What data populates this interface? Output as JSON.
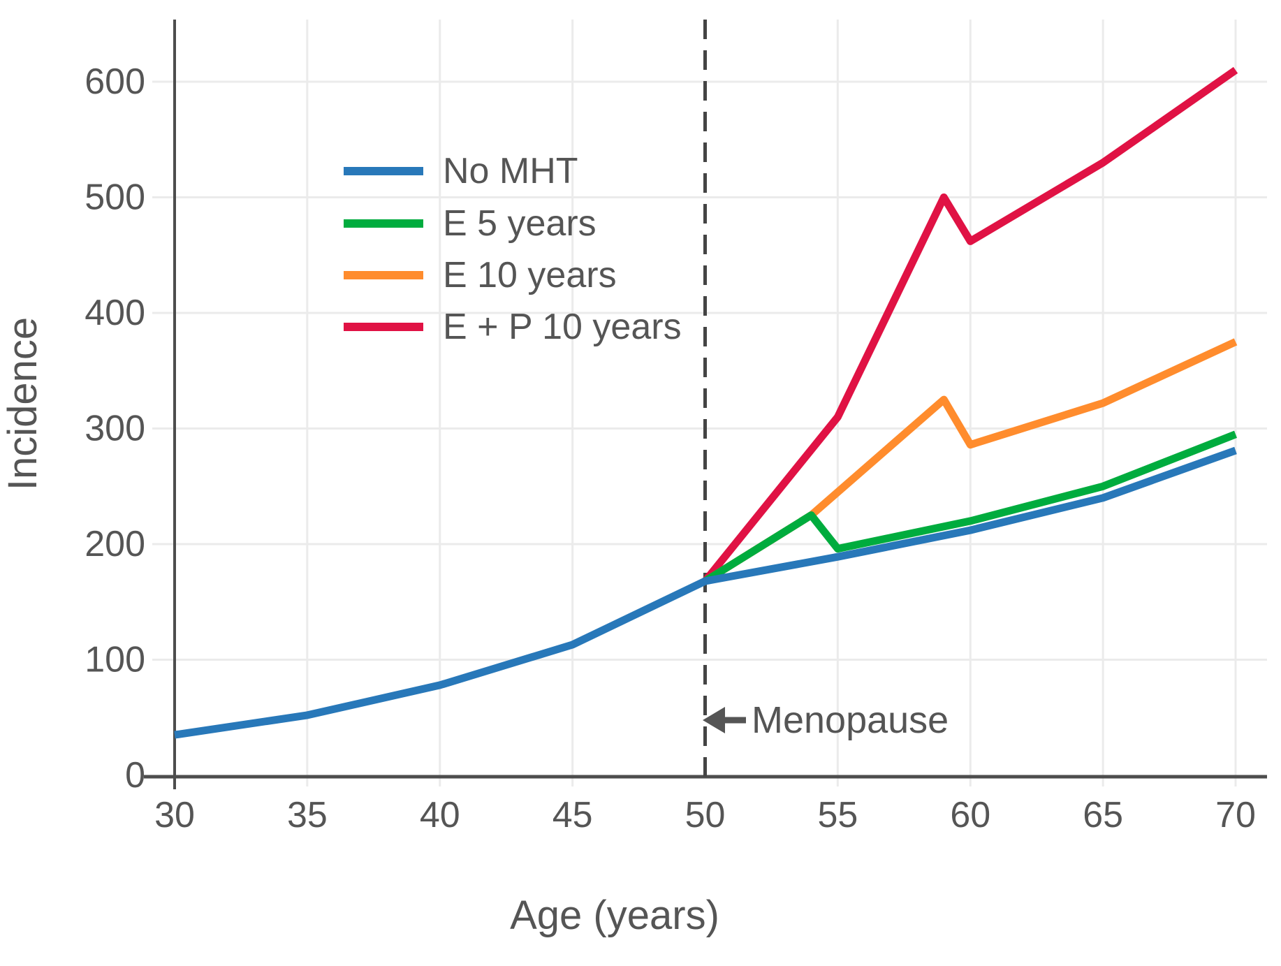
{
  "figure": {
    "background": "#ffffff",
    "text_color": "#555555",
    "spine_color": "#4d4d4d",
    "grid_color": "#ebebeb",
    "dash_line_color": "#444444"
  },
  "chart_data": {
    "type": "line",
    "title": "",
    "xlabel": "Age (years)",
    "ylabel": "Incidence",
    "xlim": [
      30,
      71.2
    ],
    "ylim": [
      0,
      650
    ],
    "xticks": [
      30,
      35,
      40,
      45,
      50,
      55,
      60,
      65,
      70
    ],
    "yticks": [
      0,
      100,
      200,
      300,
      400,
      500,
      600
    ],
    "grid": true,
    "legend": {
      "position": "upper-left-inside",
      "entries": [
        "No MHT",
        "E 5 years",
        "E 10 years",
        "E + P 10 years"
      ]
    },
    "series": [
      {
        "name": "No MHT",
        "color": "#2878b9",
        "points": [
          [
            30,
            35
          ],
          [
            35,
            52
          ],
          [
            40,
            78
          ],
          [
            45,
            113
          ],
          [
            50,
            168
          ],
          [
            55,
            189
          ],
          [
            60,
            212
          ],
          [
            65,
            240
          ],
          [
            70,
            281
          ]
        ]
      },
      {
        "name": "E 5 years",
        "color": "#00ac3e",
        "points": [
          [
            50,
            168
          ],
          [
            54,
            225
          ],
          [
            55,
            196
          ],
          [
            60,
            220
          ],
          [
            65,
            250
          ],
          [
            70,
            295
          ]
        ]
      },
      {
        "name": "E 10 years",
        "color": "#ff8c2d",
        "points": [
          [
            50,
            168
          ],
          [
            54,
            225
          ],
          [
            59,
            325
          ],
          [
            60,
            286
          ],
          [
            65,
            322
          ],
          [
            70,
            375
          ]
        ]
      },
      {
        "name": "E + P 10 years",
        "color": "#e01244",
        "points": [
          [
            50,
            168
          ],
          [
            55,
            310
          ],
          [
            59,
            500
          ],
          [
            60,
            462
          ],
          [
            65,
            530
          ],
          [
            70,
            610
          ]
        ]
      }
    ],
    "annotations": {
      "menopause_line": {
        "x": 50,
        "style": "dashed"
      },
      "menopause": {
        "text": "Menopause",
        "x": 50,
        "y": 47,
        "arrow": "left"
      }
    }
  }
}
